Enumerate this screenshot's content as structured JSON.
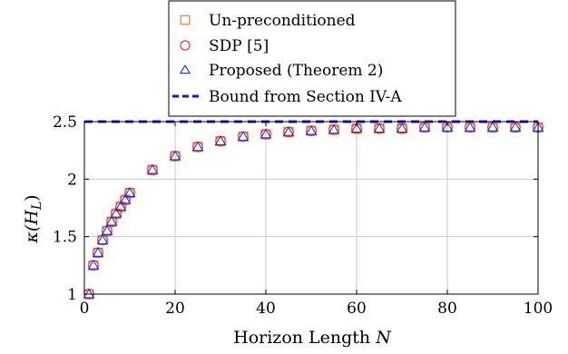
{
  "chart_data": {
    "type": "scatter",
    "title": "",
    "xlabel": "Horizon Length ",
    "xlabel_var": "N",
    "ylabel": "κ(H",
    "ylabel_sub": "L",
    "ylabel_close": ")",
    "xlim": [
      0,
      100
    ],
    "ylim": [
      1,
      2.5
    ],
    "xticks": [
      0,
      20,
      40,
      60,
      80,
      100
    ],
    "yticks": [
      1,
      1.5,
      2,
      2.5
    ],
    "ytick_labels": [
      "1",
      "1.5",
      "2",
      "2.5"
    ],
    "grid": true,
    "legend_position": "top-center",
    "x": [
      1,
      2,
      3,
      4,
      5,
      6,
      7,
      8,
      9,
      10,
      15,
      20,
      25,
      30,
      35,
      40,
      45,
      50,
      55,
      60,
      65,
      70,
      75,
      80,
      85,
      90,
      95,
      100
    ],
    "series": [
      {
        "name": "Un-preconditioned",
        "marker": "square",
        "color": "#e07b3a",
        "values": [
          1.0,
          1.25,
          1.36,
          1.47,
          1.55,
          1.63,
          1.7,
          1.76,
          1.82,
          1.88,
          2.08,
          2.2,
          2.28,
          2.33,
          2.37,
          2.39,
          2.41,
          2.42,
          2.43,
          2.44,
          2.44,
          2.44,
          2.45,
          2.45,
          2.45,
          2.45,
          2.45,
          2.45
        ]
      },
      {
        "name": "SDP [5]",
        "marker": "circle",
        "color": "#e8322a",
        "values": [
          1.0,
          1.25,
          1.36,
          1.47,
          1.55,
          1.63,
          1.7,
          1.76,
          1.82,
          1.88,
          2.08,
          2.2,
          2.28,
          2.33,
          2.37,
          2.39,
          2.41,
          2.42,
          2.43,
          2.44,
          2.44,
          2.44,
          2.45,
          2.45,
          2.45,
          2.45,
          2.45,
          2.45
        ]
      },
      {
        "name": "Proposed (Theorem 2)",
        "marker": "triangle",
        "color": "#2233cc",
        "values": [
          1.0,
          1.25,
          1.36,
          1.47,
          1.55,
          1.63,
          1.7,
          1.76,
          1.82,
          1.88,
          2.08,
          2.2,
          2.28,
          2.33,
          2.37,
          2.39,
          2.41,
          2.42,
          2.43,
          2.44,
          2.44,
          2.44,
          2.45,
          2.45,
          2.45,
          2.45,
          2.45,
          2.45
        ]
      }
    ],
    "bound": {
      "name": "Bound from Section IV-A",
      "value": 2.5,
      "style": "dashed",
      "color": "#1414e6"
    }
  }
}
